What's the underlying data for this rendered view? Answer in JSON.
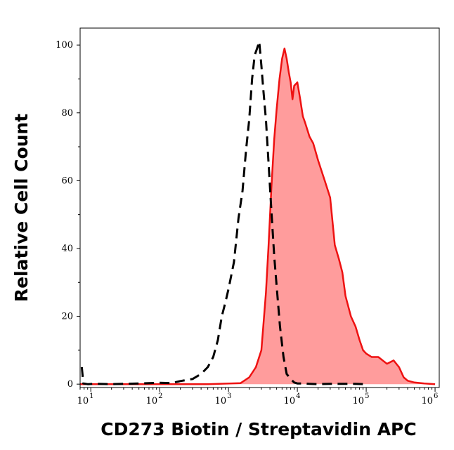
{
  "chart_data": {
    "type": "area",
    "xlabel": "CD273 Biotin / Streptavidin APC",
    "ylabel": "Relative Cell Count",
    "x_scale": "log",
    "xlim": [
      7,
      1150000
    ],
    "ylim": [
      -1,
      105
    ],
    "x_ticks": [
      {
        "base": "10",
        "exp": "1",
        "value": 10
      },
      {
        "base": "10",
        "exp": "2",
        "value": 100
      },
      {
        "base": "10",
        "exp": "3",
        "value": 1000
      },
      {
        "base": "10",
        "exp": "4",
        "value": 10000
      },
      {
        "base": "10",
        "exp": "5",
        "value": 100000
      },
      {
        "base": "10",
        "exp": "6",
        "value": 1000000
      }
    ],
    "y_ticks": [
      0,
      20,
      40,
      60,
      80,
      100
    ],
    "grid": false,
    "legend": "none",
    "series": [
      {
        "style": "dashed",
        "color": "#000000",
        "fill": "none",
        "x": [
          7.4,
          7.8,
          9,
          12,
          20,
          50,
          100,
          150,
          200,
          300,
          400,
          500,
          600,
          700,
          800,
          900,
          1000,
          1200,
          1400,
          1600,
          1800,
          2000,
          2200,
          2400,
          2600,
          2800,
          3000,
          3200,
          3500,
          3800,
          4200,
          4600,
          5000,
          5600,
          6300,
          7000,
          8000,
          9000,
          10000,
          12000,
          15000,
          20000,
          30000,
          60000,
          100000
        ],
        "y": [
          5,
          0.2,
          0,
          0.1,
          0,
          0.2,
          0.4,
          0.3,
          0.9,
          1.5,
          3,
          5,
          8,
          13,
          20,
          24,
          28,
          36,
          49,
          57,
          69,
          78,
          90,
          97,
          99,
          101,
          94,
          87,
          78,
          66,
          51,
          38,
          29,
          17,
          8,
          3,
          1.5,
          0.5,
          0.2,
          0.2,
          0.1,
          0,
          0.1,
          0.1,
          0
        ]
      },
      {
        "style": "solid",
        "color": "#ee1111",
        "fill": "#ff9c9c",
        "x": [
          7,
          50,
          500,
          1500,
          2000,
          2500,
          3000,
          3200,
          3500,
          3800,
          4200,
          4600,
          5000,
          5500,
          6000,
          6500,
          7000,
          7500,
          8000,
          8500,
          9000,
          10000,
          11000,
          12000,
          13000,
          15000,
          17000,
          20000,
          25000,
          30000,
          35000,
          40000,
          45000,
          50000,
          60000,
          70000,
          80000,
          90000,
          100000,
          120000,
          150000,
          200000,
          250000,
          300000,
          350000,
          400000,
          500000,
          700000,
          1000000
        ],
        "y": [
          0,
          0,
          0,
          0.3,
          2,
          5,
          10,
          17,
          27,
          40,
          58,
          72,
          81,
          90,
          96,
          99,
          96,
          92,
          89,
          84,
          88,
          89,
          84,
          79,
          77,
          73,
          71,
          66,
          60,
          55,
          41,
          37,
          33,
          26,
          20,
          17,
          13,
          10,
          9,
          8,
          8,
          6,
          7,
          5,
          2,
          1,
          0.5,
          0.2,
          0
        ]
      }
    ]
  }
}
